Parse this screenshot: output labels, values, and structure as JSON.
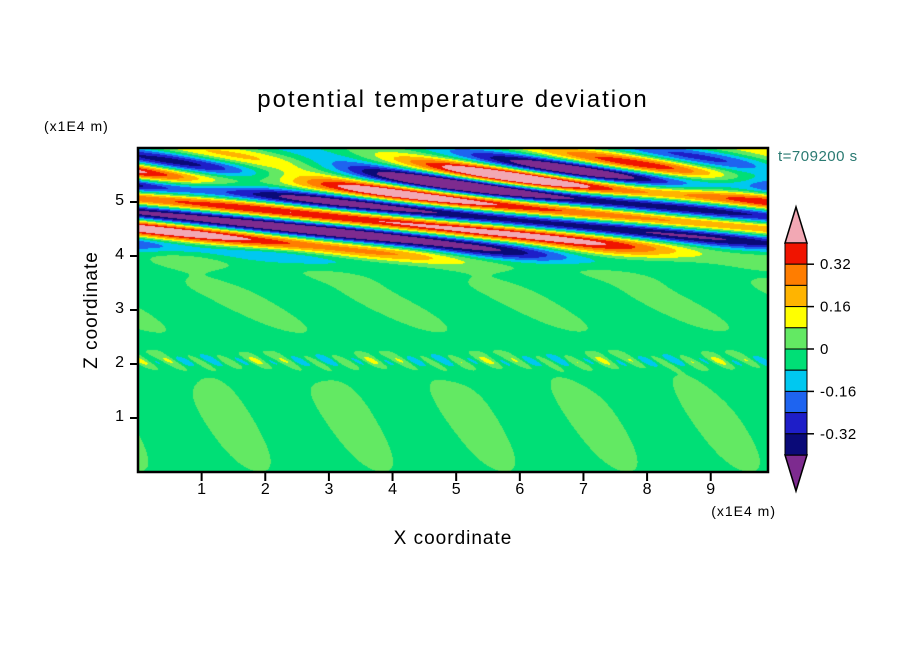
{
  "page": {
    "background": "#ffffff",
    "text_color": "#000000"
  },
  "chart_data": {
    "type": "filled_contour",
    "title": "potential temperature deviation",
    "time_label": "t=709200 s",
    "time_label_color": "#2a7a72",
    "xlabel": "X coordinate",
    "x_units": "(x1E4 m)",
    "zlabel": "Z coordinate",
    "z_units": "(x1E4 m)",
    "x_range": [
      0,
      9.9
    ],
    "z_range": [
      0,
      6.0
    ],
    "x_ticks": [
      1,
      2,
      3,
      4,
      5,
      6,
      7,
      8,
      9
    ],
    "z_ticks": [
      1,
      2,
      3,
      4,
      5
    ],
    "grid": false,
    "legend_position": "right-colorbar",
    "colorbar": {
      "levels": [
        -0.4,
        -0.32,
        -0.24,
        -0.16,
        -0.08,
        0,
        0.08,
        0.16,
        0.24,
        0.32,
        0.4
      ],
      "band_colors": [
        "#0a0a78",
        "#1e1ec8",
        "#1e64f0",
        "#00c8f0",
        "#00df76",
        "#63e963",
        "#ffff00",
        "#ffb400",
        "#ff7d00",
        "#f01400"
      ],
      "under_color": "#7d2b8f",
      "over_color": "#f2a8b4",
      "tick_labels": [
        "0.32",
        "0.16",
        "0",
        "-0.16",
        "-0.32"
      ],
      "tick_values": [
        0.32,
        0.16,
        0,
        -0.16,
        -0.32
      ]
    },
    "field": {
      "description": "Potential temperature deviation: gravity-wave streaks (red/orange/yellow positive, cyan/blue/navy negative) in upper layer z=4-6, quiescent green middle layer, thin striped interface near z=2, light-green convective cells below z=2.",
      "base": -0.018,
      "components": [
        {
          "amp": 0.42,
          "zc": 5.0,
          "zw": 0.75,
          "fx": 0.22,
          "fz": 1.8,
          "ph": 0.1
        },
        {
          "amp": 0.34,
          "zc": 5.55,
          "zw": 0.45,
          "fx": 0.35,
          "fz": 1.4,
          "ph": 0.55
        },
        {
          "amp": 0.3,
          "zc": 4.35,
          "zw": 0.35,
          "fx": 0.18,
          "fz": 1.2,
          "ph": 0.85
        },
        {
          "amp": 0.12,
          "zc": 4.05,
          "zw": 0.18,
          "fx": 0.3,
          "fz": 0.9,
          "ph": 2.4
        },
        {
          "amp": 0.05,
          "zc": 3.2,
          "zw": 0.6,
          "fx": 0.45,
          "fz": 0.7,
          "ph": 0.3
        },
        {
          "amp": 0.1,
          "zc": 2.05,
          "zw": 0.12,
          "fx": 2.2,
          "fz": 3.0,
          "ph": 0.0
        },
        {
          "amp": 0.05,
          "zc": 2.1,
          "zw": 0.15,
          "fx": 0.55,
          "fz": 0.0,
          "ph": 1.2
        },
        {
          "amp": 0.055,
          "zc": 0.9,
          "zw": 0.85,
          "fx": 0.52,
          "fz": 0.28,
          "ph": 0.25
        },
        {
          "amp": 0.008,
          "zc": 1.3,
          "zw": 0.6,
          "fx": 1.0,
          "fz": 0.5,
          "ph": 2.0
        }
      ]
    }
  }
}
